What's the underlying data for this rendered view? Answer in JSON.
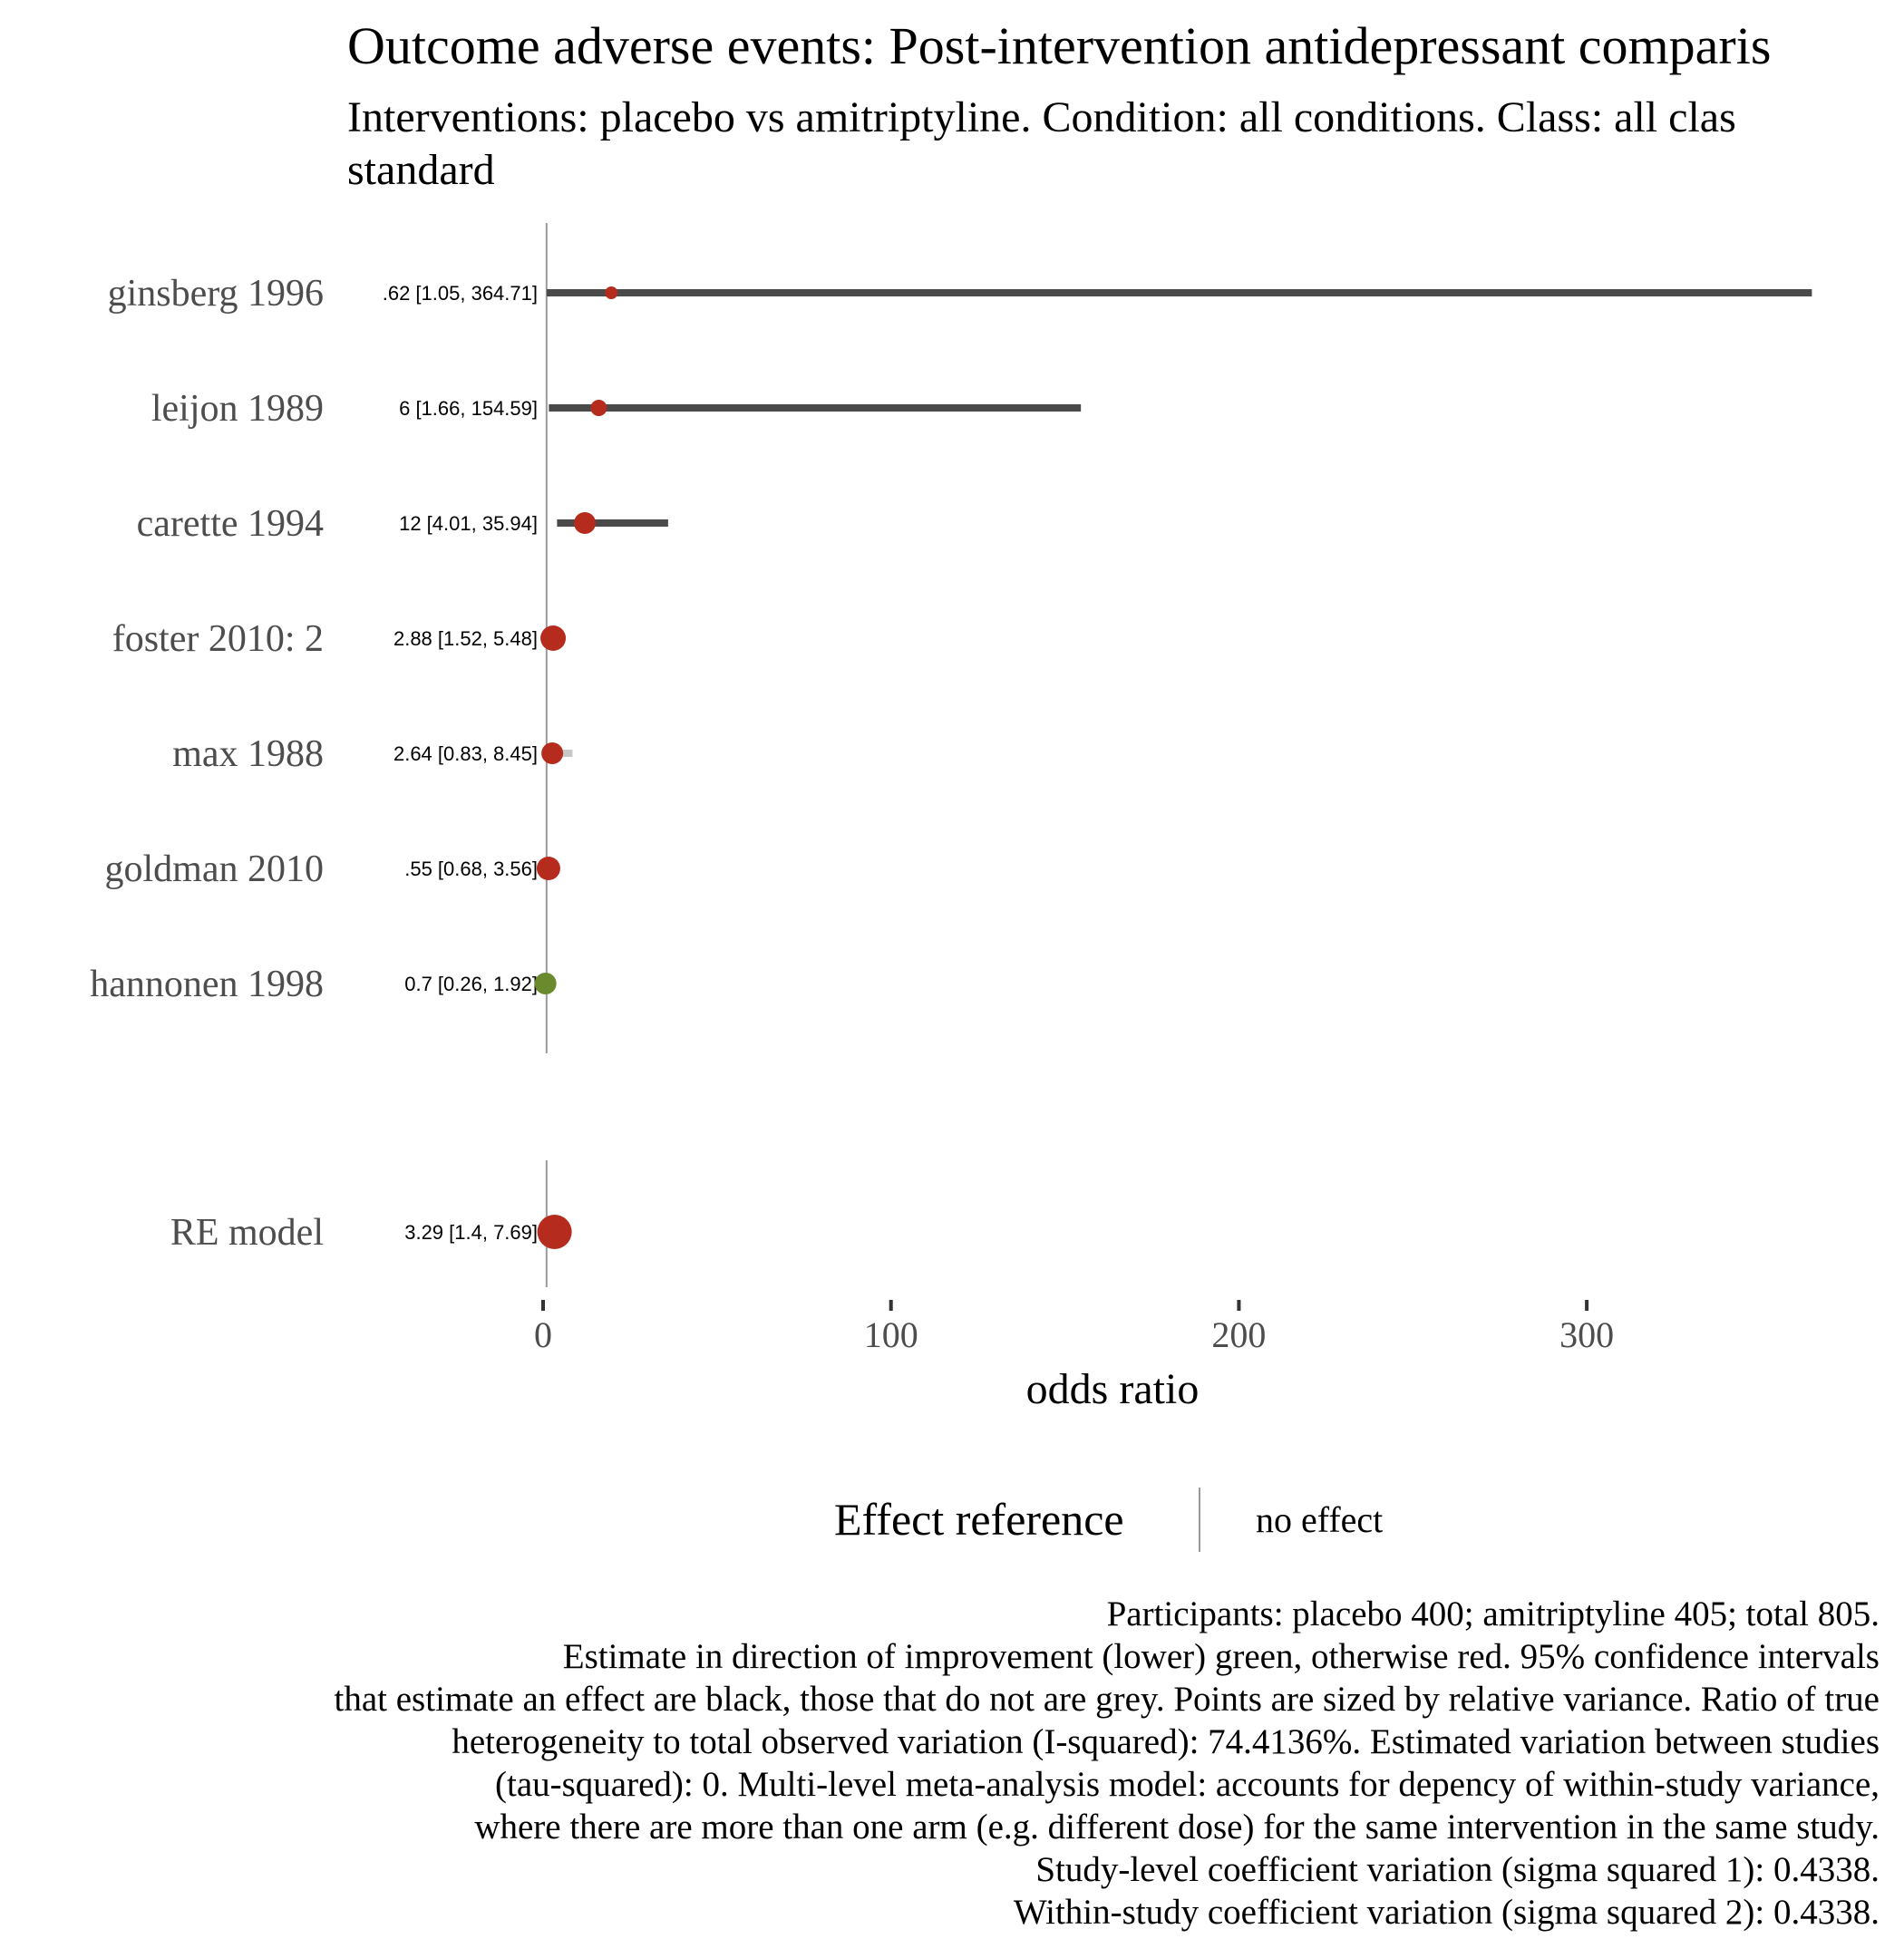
{
  "chart_data": {
    "type": "forest",
    "title": "Outcome adverse events: Post-intervention antidepressant comparis",
    "subtitle_lines": [
      "Interventions: placebo vs amitriptyline. Condition: all conditions. Class: all clas",
      "standard"
    ],
    "xlabel": "odds ratio",
    "xlim": [
      0,
      370
    ],
    "xticks": [
      0,
      100,
      200,
      300
    ],
    "reference_line": 1,
    "studies": [
      {
        "label": "ginsberg 1996",
        "annotation": ".62 [1.05, 364.71]",
        "or": 19.62,
        "lower": 1.05,
        "upper": 364.71,
        "color": "#b52b1e",
        "ci_color": "#4a4a4a",
        "size": 7
      },
      {
        "label": "leijon 1989",
        "annotation": "6 [1.66, 154.59]",
        "or": 16.0,
        "lower": 1.66,
        "upper": 154.59,
        "color": "#b52b1e",
        "ci_color": "#4a4a4a",
        "size": 9
      },
      {
        "label": "carette 1994",
        "annotation": "12 [4.01, 35.94]",
        "or": 12.0,
        "lower": 4.01,
        "upper": 35.94,
        "color": "#b52b1e",
        "ci_color": "#4a4a4a",
        "size": 12
      },
      {
        "label": "foster 2010: 2",
        "annotation": "2.88 [1.52, 5.48]",
        "or": 2.88,
        "lower": 1.52,
        "upper": 5.48,
        "color": "#b52b1e",
        "ci_color": "#4a4a4a",
        "size": 14
      },
      {
        "label": "max 1988",
        "annotation": "2.64 [0.83, 8.45]",
        "or": 2.64,
        "lower": 0.83,
        "upper": 8.45,
        "color": "#b52b1e",
        "ci_color": "#c8c8c8",
        "size": 12
      },
      {
        "label": "goldman 2010",
        "annotation": ".55 [0.68, 3.56]",
        "or": 1.55,
        "lower": 0.68,
        "upper": 3.56,
        "color": "#b52b1e",
        "ci_color": "#c8c8c8",
        "size": 13
      },
      {
        "label": "hannonen 1998",
        "annotation": "0.7 [0.26, 1.92]",
        "or": 0.7,
        "lower": 0.26,
        "upper": 1.92,
        "color": "#6b8a2e",
        "ci_color": "#c8c8c8",
        "size": 12
      }
    ],
    "summary": {
      "label": "RE model",
      "annotation": "3.29 [1.4, 7.69]",
      "or": 3.29,
      "lower": 1.4,
      "upper": 7.69,
      "color": "#b52b1e",
      "ci_color": "#4a4a4a",
      "size": 19
    },
    "legend": {
      "title": "Effect reference",
      "item": "no effect"
    }
  },
  "caption_lines": [
    "Participants: placebo 400; amitriptyline 405; total 805.",
    "Estimate in direction of improvement (lower) green, otherwise red. 95% confidence intervals",
    "that estimate an effect are black, those that do not are grey. Points are sized by relative variance. Ratio of true",
    "heterogeneity to total observed variation (I-squared): 74.4136%. Estimated variation between studies",
    "(tau-squared): 0. Multi-level meta-analysis model: accounts for depency of within-study variance,",
    "where there are more than one arm (e.g. different dose) for the same intervention in the same study.",
    "Study-level coefficient variation (sigma squared 1): 0.4338.",
    "Within-study coefficient variation (sigma squared 2): 0.4338."
  ]
}
